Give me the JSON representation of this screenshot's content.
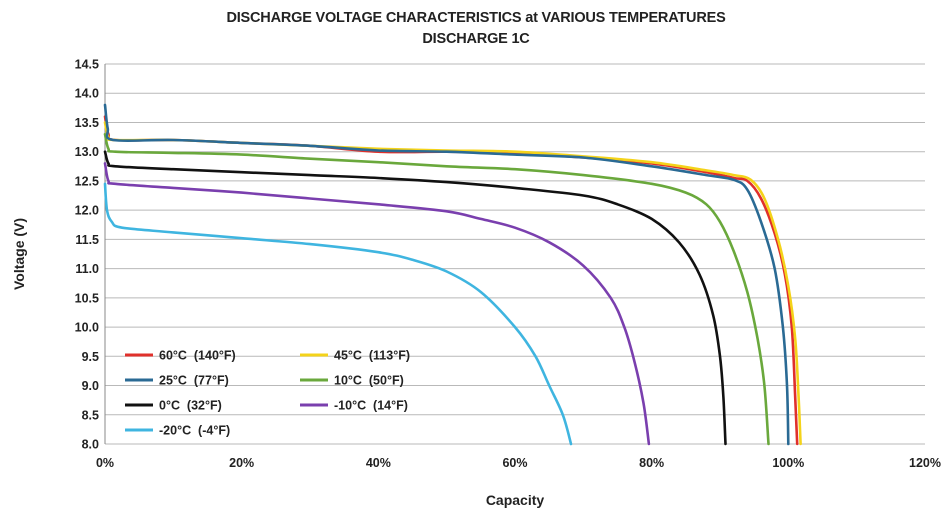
{
  "chart_data": {
    "type": "line",
    "title": "DISCHARGE VOLTAGE CHARACTERISTICS at VARIOUS TEMPERATURES",
    "subtitle": "DISCHARGE 1C",
    "xlabel": "Capacity",
    "ylabel": "Voltage (V)",
    "xlim": [
      0,
      120
    ],
    "ylim": [
      8.0,
      14.5
    ],
    "xticks": [
      0,
      20,
      40,
      60,
      80,
      100,
      120
    ],
    "xtick_labels": [
      "0%",
      "20%",
      "40%",
      "60%",
      "80%",
      "100%",
      "120%"
    ],
    "yticks": [
      8.0,
      8.5,
      9.0,
      9.5,
      10.0,
      10.5,
      11.0,
      11.5,
      12.0,
      12.5,
      13.0,
      13.5,
      14.0,
      14.5
    ],
    "ytick_labels": [
      "8.0",
      "8.5",
      "9.0",
      "9.5",
      "10.0",
      "10.5",
      "11.0",
      "11.5",
      "12.0",
      "12.5",
      "13.0",
      "13.5",
      "14.0",
      "14.5"
    ],
    "grid": "horizontal",
    "legend_position": "bottom-left",
    "series": [
      {
        "name": "60°C  (140°F)",
        "color": "#e0302b",
        "points": [
          [
            0,
            13.6
          ],
          [
            0.5,
            13.3
          ],
          [
            1.5,
            13.2
          ],
          [
            10,
            13.2
          ],
          [
            20,
            13.15
          ],
          [
            30,
            13.1
          ],
          [
            40,
            13.0
          ],
          [
            50,
            13.0
          ],
          [
            60,
            12.98
          ],
          [
            70,
            12.9
          ],
          [
            80,
            12.8
          ],
          [
            88,
            12.65
          ],
          [
            92,
            12.55
          ],
          [
            94,
            12.5
          ],
          [
            96,
            12.2
          ],
          [
            98,
            11.6
          ],
          [
            99.5,
            10.9
          ],
          [
            100.5,
            10.0
          ],
          [
            101,
            8.8
          ],
          [
            101.3,
            8.0
          ]
        ]
      },
      {
        "name": "45°C  (113°F)",
        "color": "#f4d31a",
        "points": [
          [
            0,
            13.5
          ],
          [
            0.5,
            13.25
          ],
          [
            1.5,
            13.2
          ],
          [
            10,
            13.2
          ],
          [
            20,
            13.15
          ],
          [
            30,
            13.1
          ],
          [
            40,
            13.05
          ],
          [
            50,
            13.02
          ],
          [
            60,
            13.0
          ],
          [
            70,
            12.92
          ],
          [
            80,
            12.82
          ],
          [
            88,
            12.68
          ],
          [
            92,
            12.6
          ],
          [
            94.5,
            12.52
          ],
          [
            96.5,
            12.2
          ],
          [
            98.5,
            11.5
          ],
          [
            100,
            10.7
          ],
          [
            101,
            9.8
          ],
          [
            101.5,
            8.8
          ],
          [
            101.8,
            8.0
          ]
        ]
      },
      {
        "name": "25°C  (77°F)",
        "color": "#2a6a94",
        "points": [
          [
            0,
            13.8
          ],
          [
            0.4,
            13.4
          ],
          [
            1.2,
            13.2
          ],
          [
            10,
            13.2
          ],
          [
            20,
            13.15
          ],
          [
            30,
            13.1
          ],
          [
            40,
            13.02
          ],
          [
            50,
            13.0
          ],
          [
            60,
            12.95
          ],
          [
            70,
            12.9
          ],
          [
            80,
            12.75
          ],
          [
            88,
            12.6
          ],
          [
            92,
            12.52
          ],
          [
            94,
            12.35
          ],
          [
            96,
            11.8
          ],
          [
            98,
            11.0
          ],
          [
            99.2,
            10.0
          ],
          [
            99.8,
            9.0
          ],
          [
            100,
            8.0
          ]
        ]
      },
      {
        "name": "10°C  (50°F)",
        "color": "#6aa83c",
        "points": [
          [
            0,
            13.3
          ],
          [
            0.5,
            13.05
          ],
          [
            1.5,
            13.0
          ],
          [
            10,
            12.98
          ],
          [
            20,
            12.95
          ],
          [
            30,
            12.88
          ],
          [
            40,
            12.82
          ],
          [
            50,
            12.75
          ],
          [
            60,
            12.7
          ],
          [
            70,
            12.6
          ],
          [
            80,
            12.45
          ],
          [
            85,
            12.3
          ],
          [
            88,
            12.1
          ],
          [
            90,
            11.8
          ],
          [
            92,
            11.3
          ],
          [
            94,
            10.6
          ],
          [
            95.5,
            9.8
          ],
          [
            96.5,
            9.0
          ],
          [
            97.1,
            8.0
          ]
        ]
      },
      {
        "name": "0°C  (32°F)",
        "color": "#111111",
        "points": [
          [
            0,
            13.0
          ],
          [
            0.5,
            12.8
          ],
          [
            1.5,
            12.75
          ],
          [
            10,
            12.7
          ],
          [
            20,
            12.65
          ],
          [
            30,
            12.6
          ],
          [
            40,
            12.55
          ],
          [
            50,
            12.48
          ],
          [
            60,
            12.38
          ],
          [
            70,
            12.25
          ],
          [
            75,
            12.1
          ],
          [
            80,
            11.85
          ],
          [
            84,
            11.45
          ],
          [
            87,
            10.9
          ],
          [
            89,
            10.2
          ],
          [
            90,
            9.5
          ],
          [
            90.5,
            8.8
          ],
          [
            90.8,
            8.0
          ]
        ]
      },
      {
        "name": "-10°C  (14°F)",
        "color": "#7a3fae",
        "points": [
          [
            0,
            12.8
          ],
          [
            0.5,
            12.5
          ],
          [
            1.5,
            12.45
          ],
          [
            10,
            12.38
          ],
          [
            20,
            12.3
          ],
          [
            30,
            12.2
          ],
          [
            40,
            12.1
          ],
          [
            50,
            11.98
          ],
          [
            55,
            11.85
          ],
          [
            60,
            11.7
          ],
          [
            65,
            11.45
          ],
          [
            70,
            11.05
          ],
          [
            74,
            10.5
          ],
          [
            76,
            10.0
          ],
          [
            77.5,
            9.4
          ],
          [
            78.8,
            8.7
          ],
          [
            79.6,
            8.0
          ]
        ]
      },
      {
        "name": "-20°C  (-4°F)",
        "color": "#3fb5e0",
        "points": [
          [
            0,
            12.45
          ],
          [
            0.3,
            12.0
          ],
          [
            1,
            11.8
          ],
          [
            2.5,
            11.7
          ],
          [
            10,
            11.62
          ],
          [
            20,
            11.52
          ],
          [
            30,
            11.42
          ],
          [
            40,
            11.28
          ],
          [
            45,
            11.15
          ],
          [
            50,
            10.95
          ],
          [
            55,
            10.6
          ],
          [
            60,
            10.0
          ],
          [
            63,
            9.5
          ],
          [
            65,
            9.0
          ],
          [
            67,
            8.5
          ],
          [
            68.2,
            8.0
          ]
        ]
      }
    ]
  }
}
